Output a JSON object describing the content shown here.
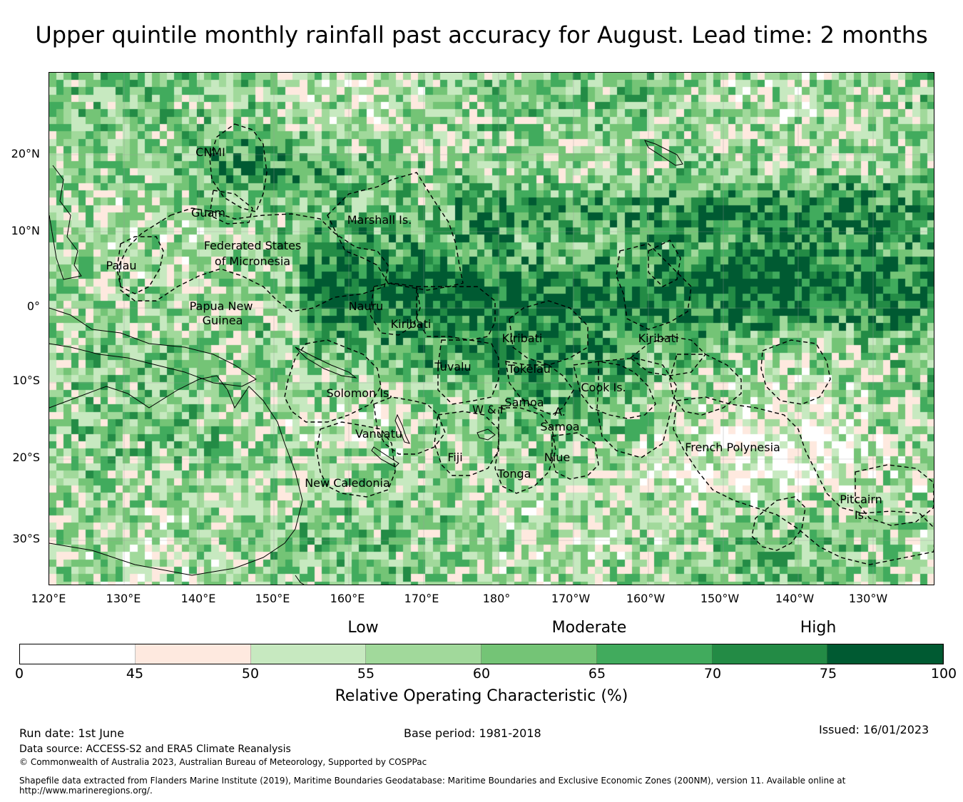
{
  "title": "Upper quintile monthly rainfall past accuracy for August. Lead time: 2 months",
  "map": {
    "lat_labels": [
      "20°N",
      "10°N",
      "0°",
      "10°S",
      "20°S",
      "30°S"
    ],
    "lon_labels": [
      "120°E",
      "130°E",
      "140°E",
      "150°E",
      "160°E",
      "170°E",
      "180°",
      "170°W",
      "160°W",
      "150°W",
      "140°W",
      "130°W"
    ],
    "regions": [
      {
        "name": "CNMI"
      },
      {
        "name": "Guam"
      },
      {
        "name": "Marshall Is."
      },
      {
        "name": "Federated States"
      },
      {
        "name": "of Micronesia"
      },
      {
        "name": "Palau"
      },
      {
        "name": "Papua New"
      },
      {
        "name": "Guinea"
      },
      {
        "name": "Nauru"
      },
      {
        "name": "Kiribati"
      },
      {
        "name": "Kiribati"
      },
      {
        "name": "Kiribati"
      },
      {
        "name": "Tuvalu"
      },
      {
        "name": "Tokelau"
      },
      {
        "name": "Cook Is."
      },
      {
        "name": "Solomon Is."
      },
      {
        "name": "W & F"
      },
      {
        "name": "Samoa"
      },
      {
        "name": "A."
      },
      {
        "name": "Samoa"
      },
      {
        "name": "Vanuatu"
      },
      {
        "name": "Fiji"
      },
      {
        "name": "Niue"
      },
      {
        "name": "Tonga"
      },
      {
        "name": "French Polynesia"
      },
      {
        "name": "New Caledonia"
      },
      {
        "name": "Pitcairn"
      },
      {
        "name": "Is."
      }
    ]
  },
  "categories": {
    "low": "Low",
    "moderate": "Moderate",
    "high": "High"
  },
  "colorbar": {
    "ticks": [
      "0",
      "45",
      "50",
      "55",
      "60",
      "65",
      "70",
      "75",
      "100"
    ],
    "colors": [
      "#ffffff",
      "#fee9df",
      "#c7e9c0",
      "#a1d99b",
      "#74c476",
      "#41ab5d",
      "#238b45",
      "#005a32"
    ],
    "title": "Relative Operating Characteristic (%)"
  },
  "footer": {
    "run_date": "Run date: 1st June",
    "base_period": "Base period: 1981-2018",
    "issued": "Issued: 16/01/2023",
    "data_source": "Data source: ACCESS-S2 and ERA5 Climate Reanalysis",
    "copyright": "© Commonwealth of Australia 2023, Australian Bureau of Meteorology, Supported by COSPPac",
    "shapefile_1": "Shapefile data extracted from Flanders Marine Institute (2019), Maritime Boundaries Geodatabase: Maritime Boundaries and Exclusive Economic Zones (200NM), version 11. Available online at",
    "shapefile_2": "http://www.marineregions.org/."
  }
}
